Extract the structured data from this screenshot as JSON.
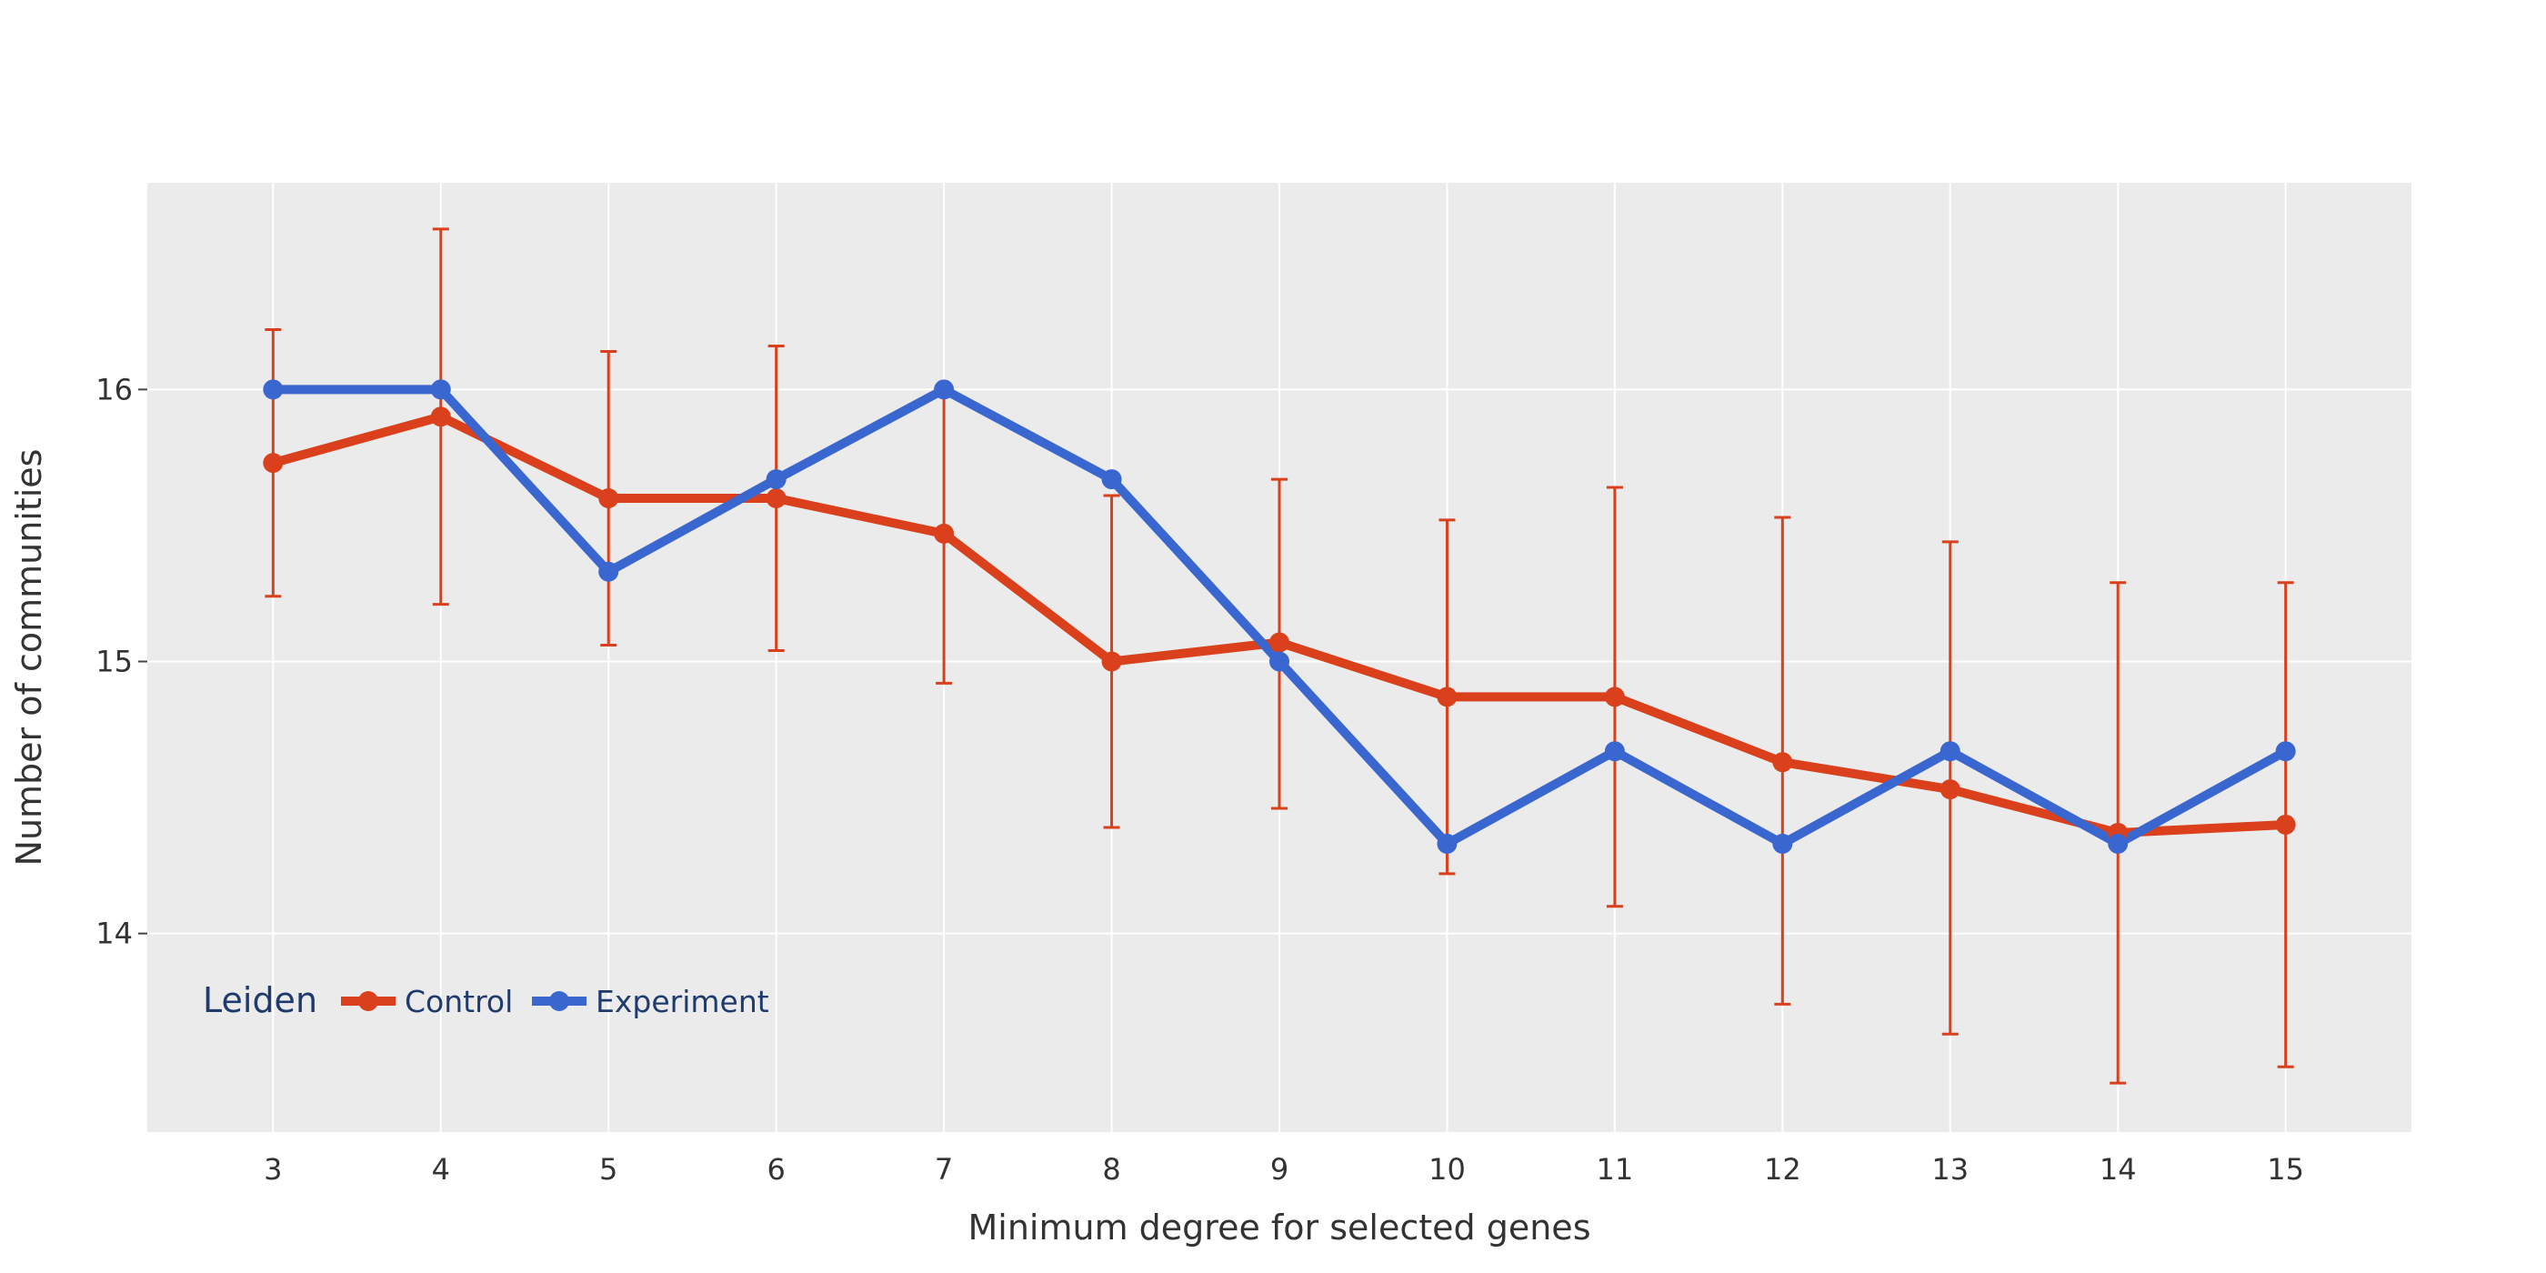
{
  "chart_data": {
    "type": "line",
    "xlabel": "Minimum degree for selected genes",
    "ylabel": "Number of communities",
    "x": [
      3,
      4,
      5,
      6,
      7,
      8,
      9,
      10,
      11,
      12,
      13,
      14,
      15
    ],
    "xlim": [
      2.25,
      15.75
    ],
    "ylim": [
      13.27,
      16.76
    ],
    "yticks": [
      14,
      15,
      16
    ],
    "grid": true,
    "legend": {
      "title": "Leiden",
      "placement": "bottom-left"
    },
    "series": [
      {
        "name": "Control",
        "color": "#d9401b",
        "values": [
          15.73,
          15.9,
          15.6,
          15.6,
          15.47,
          15.0,
          15.07,
          14.87,
          14.87,
          14.63,
          14.53,
          14.37,
          14.4
        ],
        "error_upper": [
          16.22,
          16.59,
          16.14,
          16.16,
          16.0,
          15.61,
          15.67,
          15.52,
          15.64,
          15.53,
          15.44,
          15.29,
          15.29
        ],
        "error_lower": [
          15.24,
          15.21,
          15.06,
          15.04,
          14.92,
          14.39,
          14.46,
          14.22,
          14.1,
          13.74,
          13.63,
          13.45,
          13.51
        ]
      },
      {
        "name": "Experiment",
        "color": "#3a66d0",
        "values": [
          16.0,
          16.0,
          15.33,
          15.67,
          16.0,
          15.67,
          15.0,
          14.33,
          14.67,
          14.33,
          14.67,
          14.33,
          14.67
        ]
      }
    ]
  }
}
